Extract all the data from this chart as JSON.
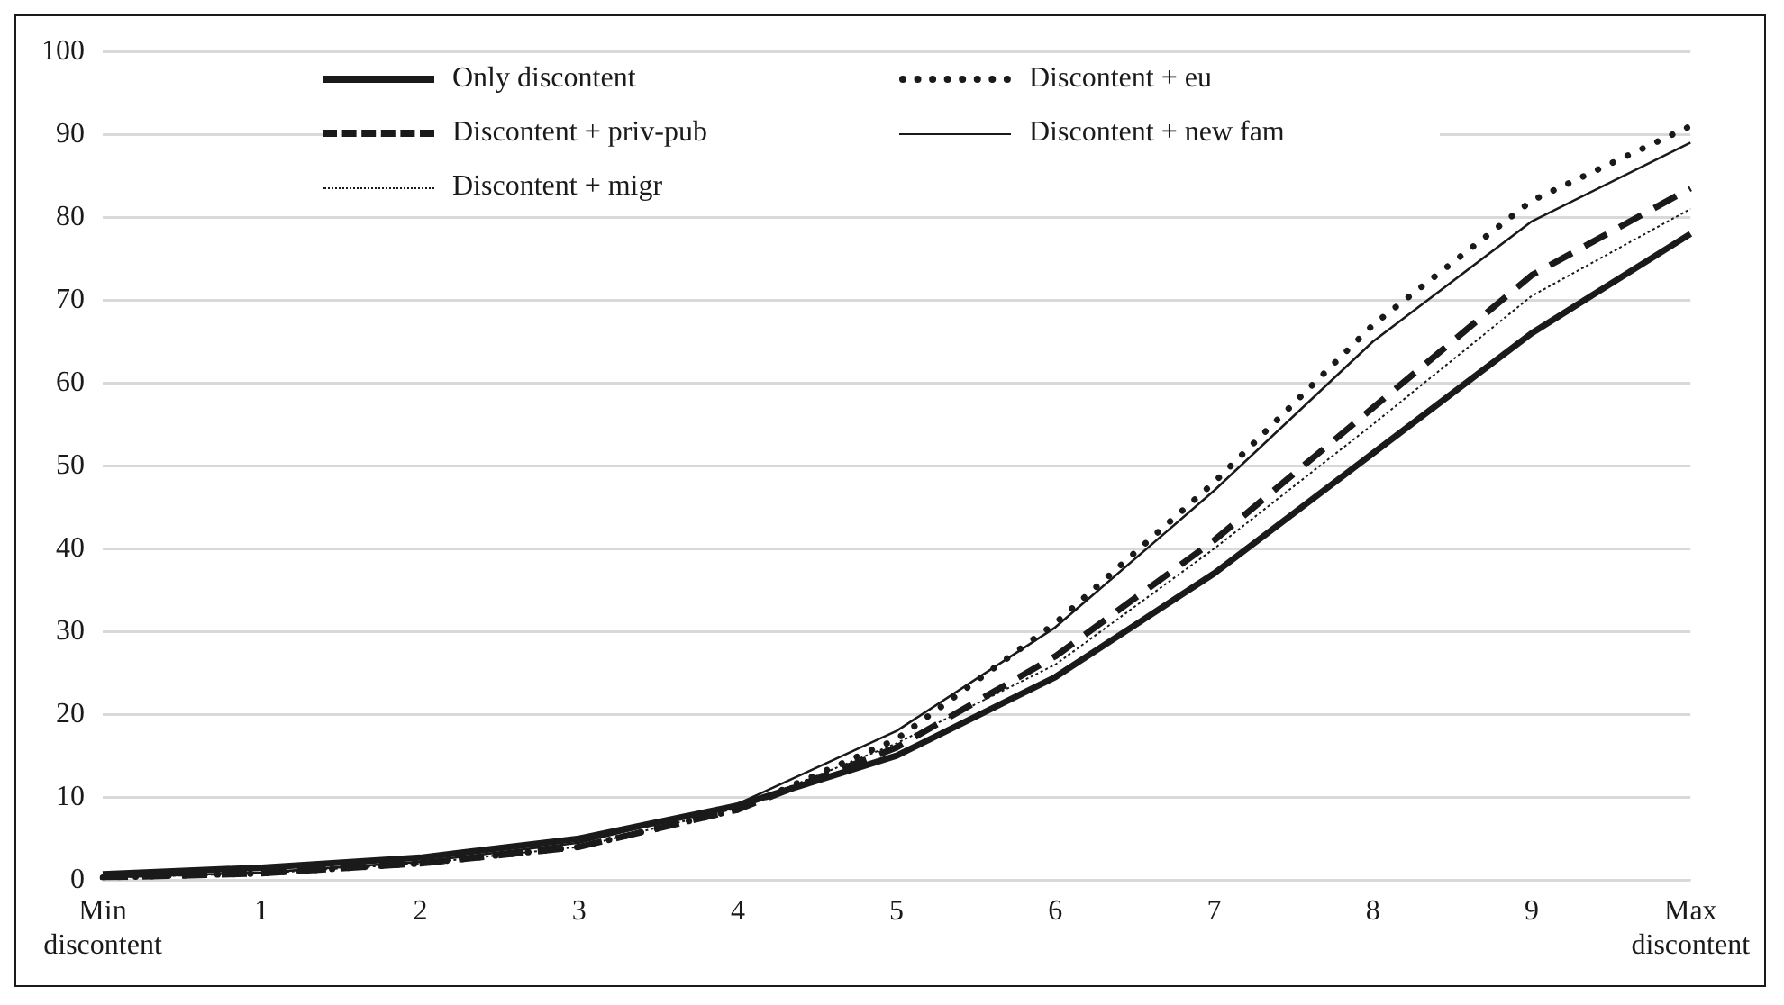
{
  "chart_data": {
    "type": "line",
    "categories": [
      "Min discontent",
      "1",
      "2",
      "3",
      "4",
      "5",
      "6",
      "7",
      "8",
      "9",
      "Max discontent"
    ],
    "series": [
      {
        "name": "Only discontent",
        "color": "#1a1a1a",
        "line_style": "solid",
        "values": [
          0.7,
          1.5,
          2.7,
          5,
          9,
          15,
          24.5,
          37,
          51.5,
          66,
          78
        ]
      },
      {
        "name": "Discontent + eu",
        "color": "#1a1a1a",
        "line_style": "dotted",
        "values": [
          0.3,
          0.8,
          2,
          4,
          8.5,
          17,
          31,
          48,
          67,
          82,
          91
        ]
      },
      {
        "name": "Discontent + priv-pub",
        "color": "#1a1a1a",
        "line_style": "dashed",
        "values": [
          0.3,
          0.8,
          2,
          4,
          8.5,
          16,
          27,
          41,
          57,
          73,
          83.5
        ]
      },
      {
        "name": "Discontent + new fam",
        "color": "#1a1a1a",
        "line_style": "solid",
        "values": [
          0.3,
          0.9,
          2.2,
          4.5,
          9.2,
          18,
          30.5,
          47,
          65,
          79.5,
          89
        ]
      },
      {
        "name": "Discontent + migr",
        "color": "#1a1a1a",
        "line_style": "dotted",
        "values": [
          0.3,
          0.8,
          2,
          4,
          8.7,
          16.5,
          26,
          40,
          55,
          70.5,
          81
        ]
      }
    ],
    "ylim": [
      0,
      100
    ],
    "yticks": [
      0,
      10,
      20,
      30,
      40,
      50,
      60,
      70,
      80,
      90,
      100
    ],
    "grid": "y",
    "legend": "top left",
    "marker": "none"
  }
}
